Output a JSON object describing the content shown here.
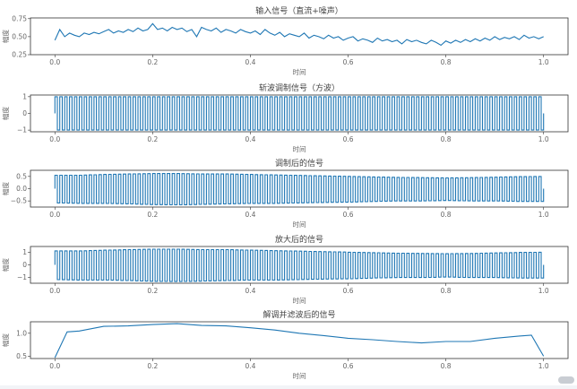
{
  "chart_data": [
    {
      "type": "line",
      "title": "输入信号（直流+噪声）",
      "xlabel": "时间",
      "ylabel": "幅度",
      "xlim": [
        -0.05,
        1.05
      ],
      "ylim": [
        0.25,
        0.76
      ],
      "xticks": [
        "0.0",
        "0.2",
        "0.4",
        "0.6",
        "0.8",
        "1.0"
      ],
      "yticks": [
        "0.25",
        "0.50",
        "0.75"
      ],
      "ytick_values": [
        0.25,
        0.5,
        0.75
      ],
      "x_range": [
        0,
        1
      ],
      "values": [
        0.45,
        0.6,
        0.5,
        0.55,
        0.52,
        0.5,
        0.55,
        0.53,
        0.56,
        0.54,
        0.57,
        0.6,
        0.55,
        0.58,
        0.56,
        0.6,
        0.57,
        0.62,
        0.58,
        0.6,
        0.68,
        0.6,
        0.62,
        0.58,
        0.63,
        0.6,
        0.62,
        0.57,
        0.6,
        0.5,
        0.63,
        0.6,
        0.58,
        0.62,
        0.56,
        0.6,
        0.58,
        0.55,
        0.6,
        0.57,
        0.55,
        0.58,
        0.53,
        0.6,
        0.55,
        0.52,
        0.56,
        0.5,
        0.54,
        0.52,
        0.5,
        0.55,
        0.48,
        0.52,
        0.5,
        0.47,
        0.52,
        0.48,
        0.5,
        0.45,
        0.48,
        0.5,
        0.44,
        0.47,
        0.45,
        0.42,
        0.48,
        0.44,
        0.46,
        0.43,
        0.45,
        0.4,
        0.46,
        0.43,
        0.45,
        0.42,
        0.4,
        0.45,
        0.42,
        0.38,
        0.44,
        0.41,
        0.45,
        0.42,
        0.46,
        0.43,
        0.47,
        0.44,
        0.48,
        0.45,
        0.5,
        0.46,
        0.49,
        0.47,
        0.5,
        0.46,
        0.52,
        0.48,
        0.5,
        0.47,
        0.5
      ],
      "grid": false,
      "color": "#1f77b4"
    },
    {
      "type": "line",
      "title": "斩波调制信号（方波）",
      "xlabel": "时间",
      "ylabel": "幅度",
      "xlim": [
        -0.05,
        1.05
      ],
      "ylim": [
        -1.1,
        1.1
      ],
      "xticks": [
        "0.0",
        "0.2",
        "0.4",
        "0.6",
        "0.8",
        "1.0"
      ],
      "yticks": [
        "1",
        "0",
        "−1"
      ],
      "ytick_values": [
        1,
        0,
        -1
      ],
      "x_range": [
        0,
        1
      ],
      "cycles": 100,
      "upper": [
        1,
        1
      ],
      "lower": [
        -1,
        -1
      ],
      "grid": false,
      "color": "#1f77b4"
    },
    {
      "type": "line",
      "title": "调制后的信号",
      "xlabel": "时间",
      "ylabel": "幅度",
      "xlim": [
        -0.05,
        1.05
      ],
      "ylim": [
        -0.75,
        0.75
      ],
      "xticks": [
        "0.0",
        "0.2",
        "0.4",
        "0.6",
        "0.8",
        "1.0"
      ],
      "yticks": [
        "0.5",
        "0.0",
        "−0.5"
      ],
      "ytick_values": [
        0.5,
        0,
        -0.5
      ],
      "x_range": [
        0,
        1
      ],
      "cycles": 100,
      "upper": [
        0.55,
        0.55,
        0.58,
        0.6,
        0.62,
        0.62,
        0.6,
        0.6,
        0.58,
        0.56,
        0.54,
        0.52,
        0.5,
        0.48,
        0.46,
        0.45,
        0.44,
        0.45,
        0.47,
        0.49,
        0.5
      ],
      "lower": [
        -0.58,
        -0.6,
        -0.6,
        -0.62,
        -0.65,
        -0.66,
        -0.64,
        -0.62,
        -0.6,
        -0.6,
        -0.58,
        -0.56,
        -0.55,
        -0.52,
        -0.5,
        -0.5,
        -0.48,
        -0.5,
        -0.5,
        -0.52,
        -0.52
      ],
      "grid": false,
      "color": "#1f77b4"
    },
    {
      "type": "line",
      "title": "放大后的信号",
      "xlabel": "时间",
      "ylabel": "幅度",
      "xlim": [
        -0.05,
        1.05
      ],
      "ylim": [
        -1.45,
        1.45
      ],
      "xticks": [
        "0.0",
        "0.2",
        "0.4",
        "0.6",
        "0.8",
        "1.0"
      ],
      "yticks": [
        "1",
        "0",
        "−1"
      ],
      "ytick_values": [
        1,
        0,
        -1
      ],
      "x_range": [
        0,
        1
      ],
      "cycles": 100,
      "upper": [
        1.1,
        1.1,
        1.16,
        1.2,
        1.24,
        1.24,
        1.2,
        1.2,
        1.16,
        1.12,
        1.08,
        1.04,
        1.0,
        0.96,
        0.92,
        0.9,
        0.88,
        0.9,
        0.94,
        0.98,
        1.0
      ],
      "lower": [
        -1.16,
        -1.2,
        -1.2,
        -1.24,
        -1.3,
        -1.32,
        -1.28,
        -1.24,
        -1.2,
        -1.2,
        -1.16,
        -1.12,
        -1.1,
        -1.04,
        -1.0,
        -1.0,
        -0.96,
        -1.0,
        -1.0,
        -1.04,
        -1.04
      ],
      "grid": false,
      "color": "#1f77b4"
    },
    {
      "type": "line",
      "title": "解调并滤波后的信号",
      "xlabel": "时间",
      "ylabel": "幅度",
      "xlim": [
        -0.05,
        1.05
      ],
      "ylim": [
        0.45,
        1.25
      ],
      "xticks": [
        "0.0",
        "0.2",
        "0.4",
        "0.6",
        "0.8",
        "1.0"
      ],
      "yticks": [
        "1.0",
        "0.5"
      ],
      "ytick_values": [
        1.0,
        0.5
      ],
      "x": [
        0,
        0.025,
        0.05,
        0.1,
        0.15,
        0.2,
        0.25,
        0.3,
        0.35,
        0.4,
        0.45,
        0.5,
        0.55,
        0.6,
        0.65,
        0.7,
        0.75,
        0.8,
        0.85,
        0.9,
        0.95,
        0.975,
        1.0
      ],
      "y": [
        0.47,
        1.03,
        1.05,
        1.15,
        1.16,
        1.19,
        1.21,
        1.17,
        1.16,
        1.12,
        1.07,
        1.0,
        0.95,
        0.89,
        0.86,
        0.82,
        0.79,
        0.82,
        0.82,
        0.89,
        0.94,
        0.96,
        0.5
      ],
      "grid": false,
      "color": "#1f77b4"
    }
  ]
}
